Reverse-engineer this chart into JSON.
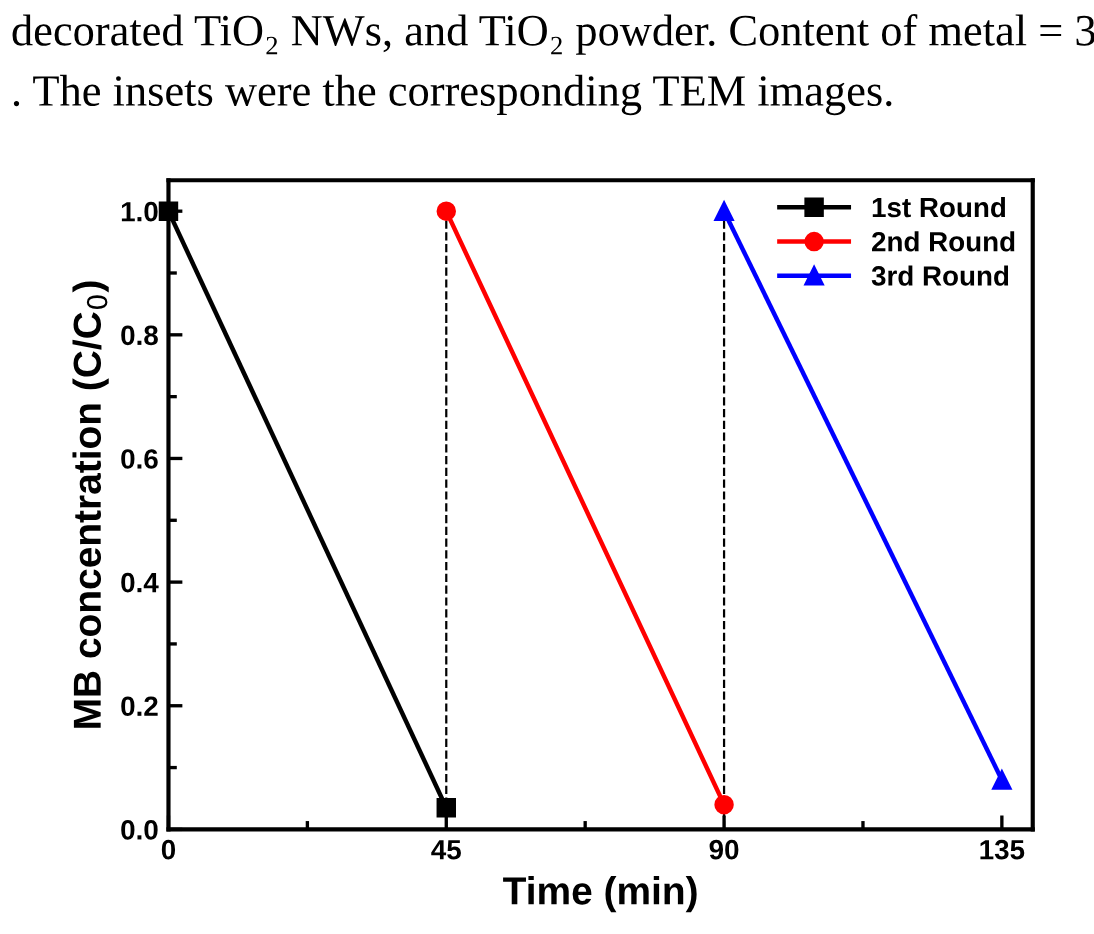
{
  "chart_data": {
    "type": "line",
    "xlabel": "Time (min)",
    "ylabel": "MB concentration (C/C$_{0}$)",
    "annotations": [
      "decorated TiO₂ NWs, and TiO₂ powder. Content of metal = 3",
      ". The insets were the corresponding TEM images."
    ],
    "series": [
      {
        "name": "1st Round",
        "color": "#000000",
        "marker": "square",
        "x": [
          0,
          45
        ],
        "values": [
          1.0,
          0.035
        ]
      },
      {
        "name": "2nd Round",
        "color": "#ff0000",
        "marker": "circle",
        "x": [
          45,
          90
        ],
        "values": [
          1.0,
          0.04
        ]
      },
      {
        "name": "3rd Round",
        "color": "#0000ff",
        "marker": "triangle",
        "x": [
          90,
          135
        ],
        "values": [
          1.0,
          0.08
        ]
      }
    ],
    "ref_lines": [
      {
        "axis": "x",
        "value": 45,
        "color": "#000000",
        "line_style": "dashed"
      },
      {
        "axis": "x",
        "value": 90,
        "color": "#000000",
        "line_style": "dashed"
      }
    ],
    "xlim": [
      0,
      140
    ],
    "xticks": [
      0,
      45,
      90,
      135
    ],
    "ylim": [
      0,
      1.05
    ],
    "yticks": [
      {
        "value": 0,
        "label": "0.0"
      },
      {
        "value": 0.2,
        "label": "0.2"
      },
      {
        "value": 0.4,
        "label": "0.4"
      },
      {
        "value": 0.6,
        "label": "0.6"
      },
      {
        "value": 0.8,
        "label": "0.8"
      },
      {
        "value": 1.0,
        "label": "1.0"
      }
    ],
    "grid": false,
    "legend": "top right"
  }
}
